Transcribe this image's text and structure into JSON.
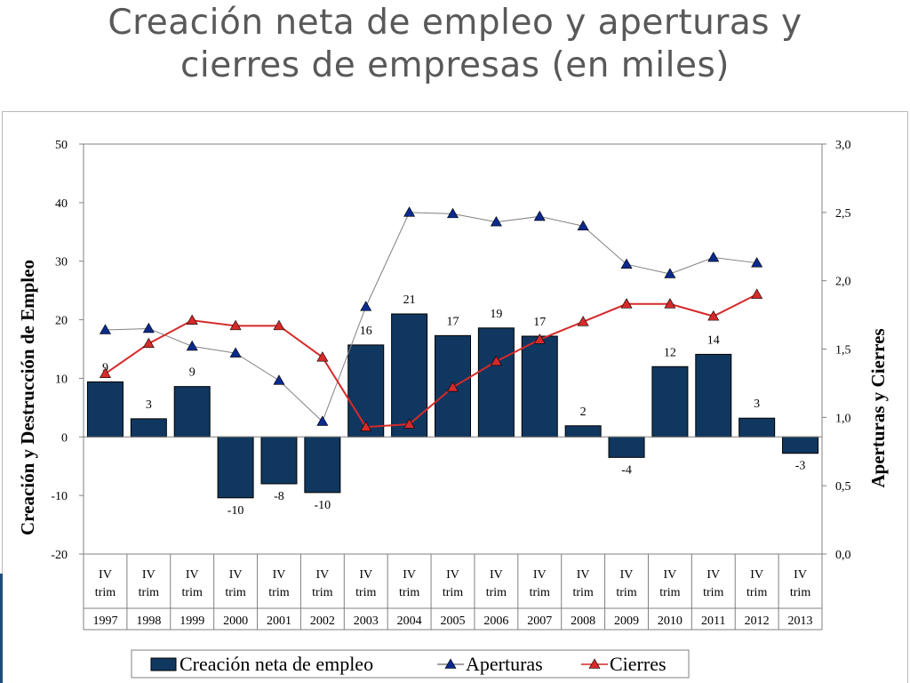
{
  "slide": {
    "title_line1": "Creación neta de empleo y aperturas y",
    "title_line2": "cierres de empresas (en miles)"
  },
  "chart_data": {
    "type": "bar",
    "period_label": "IV trim",
    "categories": [
      "1997",
      "1998",
      "1999",
      "2000",
      "2001",
      "2002",
      "2003",
      "2004",
      "2005",
      "2006",
      "2007",
      "2008",
      "2009",
      "2010",
      "2011",
      "2012",
      "2013"
    ],
    "ylabel_left": "Creación y Destrucción de Empleo",
    "ylabel_right": "Aperturas y Cierres",
    "ylim_left": [
      -20,
      50
    ],
    "ylim_right": [
      0,
      3
    ],
    "yticks_left": [
      "50",
      "40",
      "30",
      "20",
      "10",
      "0",
      "-10",
      "-20"
    ],
    "yticks_right": [
      "3,0",
      "2,5",
      "2,0",
      "1,5",
      "1,0",
      "0,5",
      "0,0"
    ],
    "series": [
      {
        "name": "Creación neta de empleo",
        "type": "bar",
        "axis": "left",
        "color": "#10375f",
        "values": [
          9.4,
          3.1,
          8.6,
          -10.4,
          -8.0,
          -9.5,
          15.7,
          21.0,
          17.3,
          18.6,
          17.2,
          1.9,
          -3.5,
          12.0,
          14.1,
          3.2,
          -2.8
        ],
        "labels": [
          "9",
          "3",
          "9",
          "-10",
          "-8",
          "-10",
          "16",
          "21",
          "17",
          "19",
          "17",
          "2",
          "-4",
          "12",
          "14",
          "3",
          "-3"
        ]
      },
      {
        "name": "Aperturas",
        "type": "line",
        "axis": "right",
        "color": "#808080",
        "marker_color": "#0b2a8c",
        "values": [
          1.64,
          1.65,
          1.52,
          1.47,
          1.27,
          0.97,
          1.81,
          2.5,
          2.49,
          2.43,
          2.47,
          2.4,
          2.12,
          2.05,
          2.17,
          2.13,
          null
        ]
      },
      {
        "name": "Cierres",
        "type": "line",
        "axis": "right",
        "color": "#d62a2a",
        "marker_color": "#d62a2a",
        "values": [
          1.32,
          1.54,
          1.71,
          1.67,
          1.67,
          1.44,
          0.93,
          0.95,
          1.22,
          1.41,
          1.57,
          1.7,
          1.83,
          1.83,
          1.74,
          1.9,
          null
        ]
      }
    ],
    "legend_position": "bottom"
  }
}
